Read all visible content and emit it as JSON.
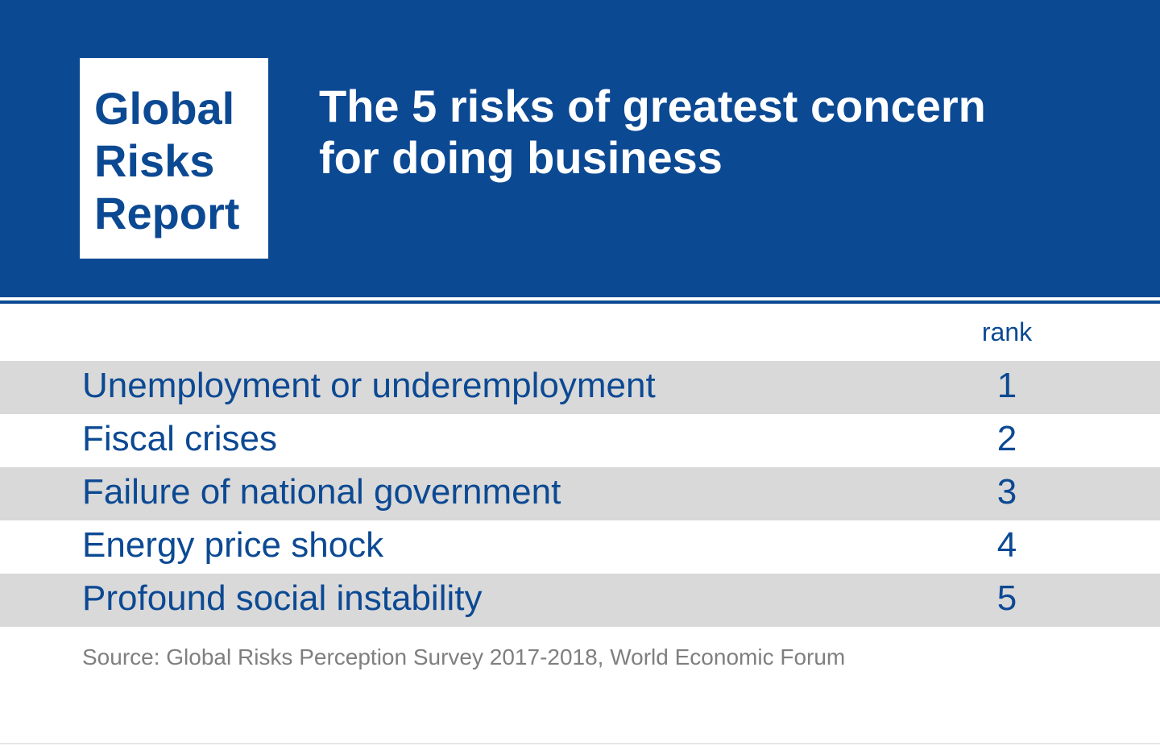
{
  "logo": {
    "lines": [
      "Global",
      "Risks",
      "Report"
    ]
  },
  "title": {
    "lines": [
      "The 5 risks of greatest concern",
      "for doing business"
    ]
  },
  "colors": {
    "brand_blue": "#0c4993",
    "row_shade": "#d9d9d9",
    "source_gray": "#7f7f7f"
  },
  "chart_data": {
    "type": "table",
    "title": "The 5 risks of greatest concern for doing business",
    "columns": [
      "",
      "rank"
    ],
    "rows": [
      {
        "risk": "Unemployment or underemployment",
        "rank": 1
      },
      {
        "risk": "Fiscal crises",
        "rank": 2
      },
      {
        "risk": "Failure of national government",
        "rank": 3
      },
      {
        "risk": "Energy price shock",
        "rank": 4
      },
      {
        "risk": "Profound social instability",
        "rank": 5
      }
    ],
    "source": "Source: Global Risks Perception Survey 2017-2018, World Economic Forum"
  }
}
